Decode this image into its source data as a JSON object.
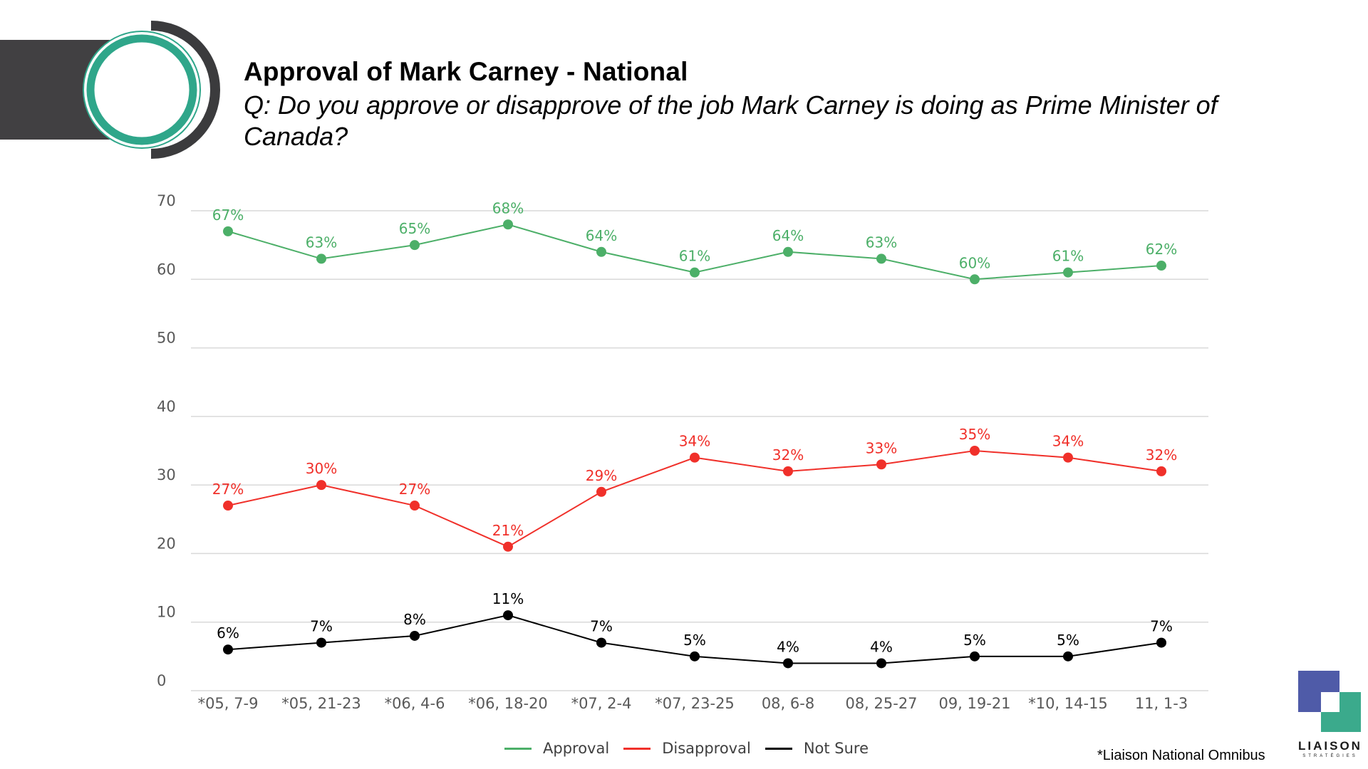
{
  "header": {
    "title": "Approval of Mark Carney - National",
    "question": "Q: Do you approve or disapprove of the job Mark Carney is doing as Prime Minister of Canada?"
  },
  "colors": {
    "approval": "#4CAF68",
    "disapproval": "#F0302A",
    "not_sure": "#000000",
    "header_bar": "#414042",
    "ring_green": "#2FA68A",
    "ring_dark": "#3B3B3D",
    "grid": "#D9D9D9"
  },
  "chart_data": {
    "type": "line",
    "categories": [
      "*05, 7-9",
      "*05, 21-23",
      "*06, 4-6",
      "*06, 18-20",
      "*07, 2-4",
      "*07, 23-25",
      "08, 6-8",
      "08, 25-27",
      "09, 19-21",
      "*10, 14-15",
      "11, 1-3"
    ],
    "ylim": [
      0,
      70
    ],
    "yticks": [
      0,
      10,
      20,
      30,
      40,
      50,
      60,
      70
    ],
    "grid": true,
    "legend_position": "bottom",
    "series": [
      {
        "name": "Approval",
        "color": "#4CAF68",
        "values": [
          67,
          63,
          65,
          68,
          64,
          61,
          64,
          63,
          60,
          61,
          62
        ],
        "labels": [
          "67%",
          "63%",
          "65%",
          "68%",
          "64%",
          "61%",
          "64%",
          "63%",
          "60%",
          "61%",
          "62%"
        ]
      },
      {
        "name": "Disapproval",
        "color": "#F0302A",
        "values": [
          27,
          30,
          27,
          21,
          29,
          34,
          32,
          33,
          35,
          34,
          32
        ],
        "labels": [
          "27%",
          "30%",
          "27%",
          "21%",
          "29%",
          "34%",
          "32%",
          "33%",
          "35%",
          "34%",
          "32%"
        ]
      },
      {
        "name": "Not Sure",
        "color": "#000000",
        "values": [
          6,
          7,
          8,
          11,
          7,
          5,
          4,
          4,
          5,
          5,
          7
        ],
        "labels": [
          "6%",
          "7%",
          "8%",
          "11%",
          "7%",
          "5%",
          "4%",
          "4%",
          "5%",
          "5%",
          "7%"
        ]
      }
    ]
  },
  "legend": {
    "items": [
      {
        "label": "Approval",
        "color": "#4CAF68"
      },
      {
        "label": "Disapproval",
        "color": "#F0302A"
      },
      {
        "label": "Not Sure",
        "color": "#000000"
      }
    ]
  },
  "footnote": "*Liaison National Omnibus",
  "logo": {
    "name": "LIAISON",
    "sub": "STRATÉGIES"
  }
}
